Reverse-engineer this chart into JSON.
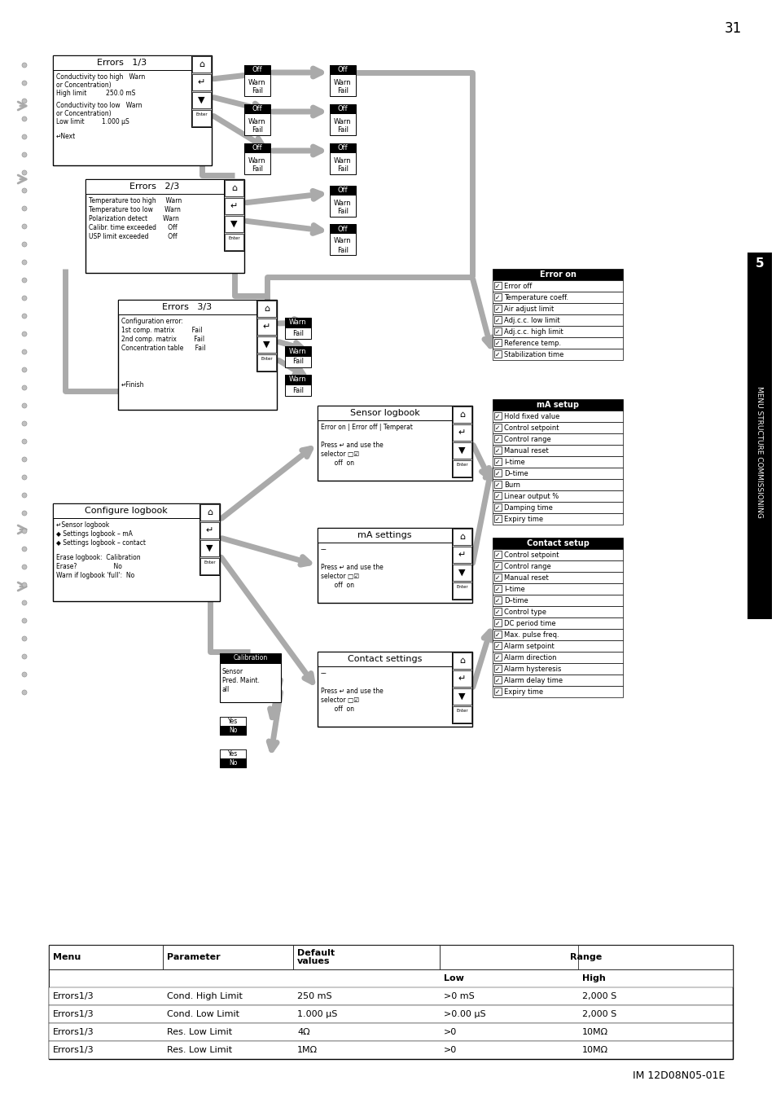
{
  "page_number": "31",
  "footer": "IM 12D08N05-01E",
  "sidebar_text": "MENU STRUCTURE COMMISSIONING",
  "sidebar_number": "5",
  "bg_color": "#ffffff",
  "table_rows": [
    [
      "Errors1/3",
      "Cond. High Limit",
      "250 mS",
      ">0 mS",
      "2,000 S"
    ],
    [
      "Errors1/3",
      "Cond. Low Limit",
      "1.000 μS",
      ">0.00 μS",
      "2,000 S"
    ],
    [
      "Errors1/3",
      "Res. Low Limit",
      "4Ω",
      ">0",
      "10MΩ"
    ],
    [
      "Errors1/3",
      "Res. Low Limit",
      "1MΩ",
      ">0",
      "10MΩ"
    ]
  ]
}
